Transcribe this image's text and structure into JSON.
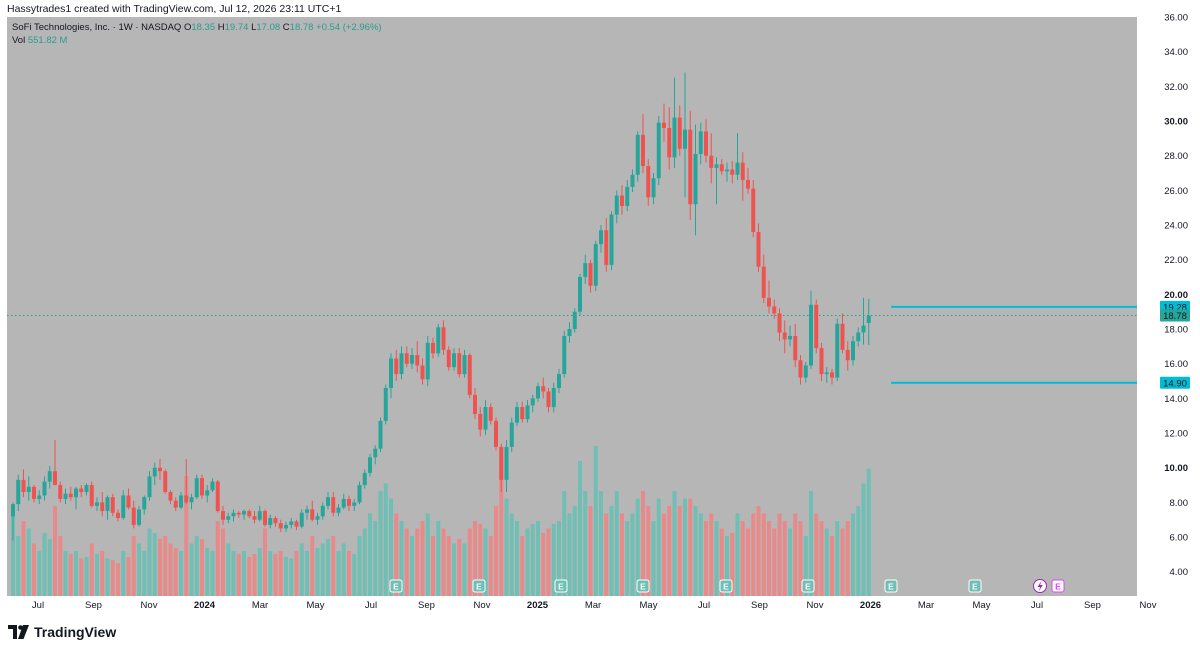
{
  "header": {
    "text": "Hassytrades1 created with TradingView.com, Jul 12, 2026 23:11 UTC+1"
  },
  "legend": {
    "symbol": "SoFi Technologies, Inc. · 1W · NASDAQ",
    "o_label": "O",
    "o_value": "18.35",
    "h_label": "H",
    "h_value": "19.74",
    "l_label": "L",
    "l_value": "17.08",
    "c_label": "C",
    "c_value": "18.78",
    "change": "+0.54 (+2.96%)",
    "vol_label": "Vol",
    "vol_value": "551.82 M"
  },
  "footer": {
    "brand": "TradingView"
  },
  "colors": {
    "background": "#b6b6b6",
    "up": "#26a69a",
    "down": "#ef5350",
    "up_volume": "#6fbfb4",
    "down_volume": "#e8898a",
    "level_line": "#00bcd4",
    "price_text": "#131722"
  },
  "icons": {
    "earnings": "earnings-e-icon",
    "future_earnings": "earnings-e-outline-icon",
    "dividend": "lightning-icon",
    "logo": "tradingview-logo-icon"
  },
  "chart_data": {
    "type": "candlestick",
    "interval": "1W",
    "ylim": [
      2.6,
      36
    ],
    "y_ticks": [
      "4.00",
      "6.00",
      "8.00",
      "10.00",
      "12.00",
      "14.00",
      "16.00",
      "18.00",
      "20.00",
      "22.00",
      "24.00",
      "26.00",
      "28.00",
      "30.00",
      "32.00",
      "34.00",
      "36.00"
    ],
    "y_bold_ticks": [
      "10.00",
      "20.00",
      "30.00"
    ],
    "x_ticks": [
      "Jul",
      "Sep",
      "Nov",
      "2024",
      "Mar",
      "May",
      "Jul",
      "Sep",
      "Nov",
      "2025",
      "Mar",
      "May",
      "Jul",
      "Sep",
      "Nov",
      "2026",
      "Mar",
      "May",
      "Jul",
      "Sep",
      "Nov"
    ],
    "x_bold_ticks": [
      "2024",
      "2025",
      "2026"
    ],
    "price_labels": [
      {
        "value": 19.28,
        "text": "19.28"
      },
      {
        "value": 18.78,
        "text": "18.78"
      },
      {
        "value": 14.9,
        "text": "14.90"
      }
    ],
    "horizontal_levels": [
      19.28,
      14.9
    ],
    "last_close": 18.78,
    "earnings_markers": 8,
    "candles": [
      [
        7.2,
        8.0,
        5.8,
        7.9,
        0.55
      ],
      [
        7.9,
        9.6,
        7.5,
        9.3,
        0.4
      ],
      [
        9.3,
        9.9,
        8.3,
        8.6,
        0.5
      ],
      [
        8.6,
        9.5,
        8.1,
        8.9,
        0.45
      ],
      [
        8.9,
        9.0,
        8.0,
        8.2,
        0.35
      ],
      [
        8.2,
        8.7,
        7.9,
        8.4,
        0.3
      ],
      [
        8.4,
        9.5,
        8.1,
        9.2,
        0.42
      ],
      [
        9.2,
        10.1,
        8.8,
        9.8,
        0.38
      ],
      [
        9.8,
        11.6,
        9.0,
        9.0,
        0.6
      ],
      [
        9.0,
        9.2,
        8.0,
        8.2,
        0.4
      ],
      [
        8.2,
        8.8,
        7.9,
        8.5,
        0.3
      ],
      [
        8.5,
        8.9,
        8.1,
        8.3,
        0.28
      ],
      [
        8.3,
        8.9,
        7.6,
        8.8,
        0.3
      ],
      [
        8.8,
        9.0,
        8.3,
        8.6,
        0.25
      ],
      [
        8.6,
        9.1,
        8.4,
        9.0,
        0.26
      ],
      [
        9.0,
        9.2,
        7.7,
        7.8,
        0.35
      ],
      [
        7.8,
        8.3,
        7.5,
        8.0,
        0.28
      ],
      [
        8.0,
        8.6,
        7.2,
        7.5,
        0.3
      ],
      [
        7.5,
        8.4,
        7.0,
        8.3,
        0.25
      ],
      [
        8.3,
        8.5,
        7.2,
        7.4,
        0.24
      ],
      [
        7.4,
        7.6,
        6.9,
        7.1,
        0.22
      ],
      [
        7.1,
        8.7,
        7.0,
        8.4,
        0.3
      ],
      [
        8.4,
        8.8,
        7.6,
        7.7,
        0.26
      ],
      [
        7.7,
        8.1,
        6.5,
        6.7,
        0.4
      ],
      [
        6.7,
        7.8,
        6.6,
        7.6,
        0.35
      ],
      [
        7.6,
        8.4,
        7.3,
        8.3,
        0.3
      ],
      [
        8.3,
        9.8,
        8.1,
        9.5,
        0.45
      ],
      [
        9.5,
        10.3,
        9.0,
        10.0,
        0.42
      ],
      [
        10.0,
        10.5,
        9.3,
        9.8,
        0.38
      ],
      [
        9.8,
        9.9,
        8.5,
        8.6,
        0.4
      ],
      [
        8.6,
        8.7,
        7.9,
        8.1,
        0.35
      ],
      [
        8.1,
        8.3,
        7.5,
        7.7,
        0.32
      ],
      [
        7.7,
        8.6,
        7.6,
        8.4,
        0.3
      ],
      [
        8.4,
        10.5,
        7.9,
        8.0,
        0.8
      ],
      [
        8.0,
        8.5,
        7.6,
        8.3,
        0.35
      ],
      [
        8.3,
        9.6,
        8.2,
        9.4,
        0.4
      ],
      [
        9.4,
        9.6,
        8.2,
        8.4,
        0.38
      ],
      [
        8.4,
        9.0,
        8.0,
        8.7,
        0.32
      ],
      [
        8.7,
        9.4,
        8.6,
        9.2,
        0.3
      ],
      [
        9.2,
        9.3,
        7.4,
        7.5,
        0.5
      ],
      [
        7.5,
        7.8,
        6.7,
        7.0,
        0.45
      ],
      [
        7.0,
        7.4,
        6.8,
        7.2,
        0.35
      ],
      [
        7.2,
        7.6,
        6.9,
        7.4,
        0.3
      ],
      [
        7.4,
        7.5,
        7.1,
        7.3,
        0.28
      ],
      [
        7.3,
        7.6,
        7.0,
        7.5,
        0.3
      ],
      [
        7.5,
        7.6,
        7.1,
        7.2,
        0.26
      ],
      [
        7.2,
        7.5,
        6.8,
        7.0,
        0.28
      ],
      [
        7.0,
        7.8,
        6.9,
        7.5,
        0.32
      ],
      [
        7.5,
        7.6,
        6.6,
        6.7,
        0.45
      ],
      [
        6.7,
        7.3,
        6.5,
        7.1,
        0.3
      ],
      [
        7.1,
        7.2,
        6.6,
        6.8,
        0.28
      ],
      [
        6.8,
        7.0,
        6.3,
        6.5,
        0.3
      ],
      [
        6.5,
        6.9,
        6.3,
        6.7,
        0.26
      ],
      [
        6.7,
        7.1,
        6.5,
        6.9,
        0.25
      ],
      [
        6.9,
        7.0,
        6.4,
        6.6,
        0.3
      ],
      [
        6.6,
        7.6,
        6.5,
        7.4,
        0.35
      ],
      [
        7.4,
        7.8,
        7.0,
        7.6,
        0.3
      ],
      [
        7.6,
        8.1,
        6.9,
        7.0,
        0.4
      ],
      [
        7.0,
        7.4,
        6.7,
        7.2,
        0.32
      ],
      [
        7.2,
        8.0,
        7.0,
        7.8,
        0.35
      ],
      [
        7.8,
        8.6,
        7.6,
        8.3,
        0.38
      ],
      [
        8.3,
        8.6,
        7.2,
        7.4,
        0.4
      ],
      [
        7.4,
        7.9,
        7.2,
        7.7,
        0.3
      ],
      [
        7.7,
        8.5,
        7.6,
        8.2,
        0.35
      ],
      [
        8.2,
        8.4,
        7.5,
        7.8,
        0.3
      ],
      [
        7.8,
        8.2,
        7.5,
        8.0,
        0.28
      ],
      [
        8.0,
        9.2,
        7.9,
        9.0,
        0.4
      ],
      [
        9.0,
        9.9,
        8.8,
        9.7,
        0.45
      ],
      [
        9.7,
        10.8,
        9.5,
        10.6,
        0.55
      ],
      [
        10.6,
        11.3,
        10.2,
        11.1,
        0.5
      ],
      [
        11.1,
        12.9,
        10.9,
        12.7,
        0.7
      ],
      [
        12.7,
        14.8,
        12.5,
        14.6,
        0.75
      ],
      [
        14.6,
        16.6,
        14.0,
        16.3,
        0.65
      ],
      [
        16.3,
        16.8,
        15.0,
        15.4,
        0.55
      ],
      [
        15.4,
        17.0,
        15.1,
        16.6,
        0.5
      ],
      [
        16.6,
        17.0,
        15.8,
        16.0,
        0.45
      ],
      [
        16.0,
        16.9,
        15.7,
        16.5,
        0.4
      ],
      [
        16.5,
        17.3,
        15.5,
        15.9,
        0.45
      ],
      [
        15.9,
        16.3,
        14.8,
        15.1,
        0.5
      ],
      [
        15.1,
        17.6,
        14.7,
        17.2,
        0.55
      ],
      [
        17.2,
        17.5,
        16.3,
        16.6,
        0.4
      ],
      [
        16.6,
        18.3,
        16.4,
        18.1,
        0.5
      ],
      [
        18.1,
        18.5,
        16.5,
        16.8,
        0.45
      ],
      [
        16.8,
        17.0,
        15.6,
        15.8,
        0.4
      ],
      [
        15.8,
        16.9,
        15.6,
        16.6,
        0.35
      ],
      [
        16.6,
        16.9,
        15.2,
        15.4,
        0.38
      ],
      [
        15.4,
        16.8,
        15.2,
        16.5,
        0.35
      ],
      [
        16.5,
        16.6,
        14.0,
        14.2,
        0.45
      ],
      [
        14.2,
        14.6,
        12.8,
        13.1,
        0.5
      ],
      [
        13.1,
        13.5,
        11.8,
        12.2,
        0.48
      ],
      [
        12.2,
        13.9,
        11.9,
        13.5,
        0.45
      ],
      [
        13.5,
        13.7,
        12.5,
        12.7,
        0.4
      ],
      [
        12.7,
        12.9,
        11.0,
        11.2,
        0.6
      ],
      [
        11.2,
        11.4,
        8.6,
        9.3,
        0.95
      ],
      [
        9.3,
        11.6,
        8.6,
        11.2,
        0.65
      ],
      [
        11.2,
        12.9,
        10.9,
        12.6,
        0.55
      ],
      [
        12.6,
        13.8,
        12.4,
        13.5,
        0.5
      ],
      [
        13.5,
        13.8,
        12.6,
        12.8,
        0.4
      ],
      [
        12.8,
        13.9,
        12.6,
        13.6,
        0.45
      ],
      [
        13.6,
        14.2,
        13.2,
        14.0,
        0.48
      ],
      [
        14.0,
        14.9,
        13.8,
        14.7,
        0.5
      ],
      [
        14.7,
        15.2,
        14.0,
        14.4,
        0.42
      ],
      [
        14.4,
        14.6,
        13.2,
        13.5,
        0.45
      ],
      [
        13.5,
        14.9,
        13.2,
        14.6,
        0.48
      ],
      [
        14.6,
        15.7,
        14.3,
        15.4,
        0.5
      ],
      [
        15.4,
        17.9,
        15.2,
        17.6,
        0.7
      ],
      [
        17.6,
        18.4,
        17.2,
        18.0,
        0.55
      ],
      [
        18.0,
        19.2,
        17.8,
        19.0,
        0.6
      ],
      [
        19.0,
        21.2,
        18.8,
        21.0,
        0.9
      ],
      [
        21.0,
        22.3,
        20.6,
        21.8,
        0.7
      ],
      [
        21.8,
        22.0,
        20.1,
        20.5,
        0.6
      ],
      [
        20.5,
        23.1,
        20.2,
        22.9,
        1.0
      ],
      [
        22.9,
        24.0,
        22.4,
        23.7,
        0.7
      ],
      [
        23.7,
        24.4,
        21.3,
        21.7,
        0.55
      ],
      [
        21.7,
        24.8,
        21.4,
        24.6,
        0.6
      ],
      [
        24.6,
        26.0,
        24.1,
        25.7,
        0.7
      ],
      [
        25.7,
        26.3,
        24.6,
        25.1,
        0.55
      ],
      [
        25.1,
        26.6,
        24.8,
        26.2,
        0.5
      ],
      [
        26.2,
        27.2,
        25.9,
        26.9,
        0.55
      ],
      [
        26.9,
        29.4,
        26.5,
        29.2,
        0.65
      ],
      [
        29.2,
        30.4,
        27.0,
        27.4,
        0.7
      ],
      [
        27.4,
        27.8,
        25.1,
        25.6,
        0.6
      ],
      [
        25.6,
        27.0,
        25.2,
        26.7,
        0.5
      ],
      [
        26.7,
        30.3,
        26.3,
        29.9,
        0.65
      ],
      [
        29.9,
        31.0,
        28.8,
        29.6,
        0.55
      ],
      [
        29.6,
        30.8,
        27.2,
        27.9,
        0.6
      ],
      [
        27.9,
        32.5,
        27.3,
        30.2,
        0.7
      ],
      [
        30.2,
        30.9,
        28.0,
        28.4,
        0.6
      ],
      [
        28.4,
        32.8,
        25.6,
        29.5,
        0.65
      ],
      [
        29.5,
        30.6,
        24.3,
        25.2,
        0.65
      ],
      [
        25.2,
        29.8,
        23.4,
        28.1,
        0.6
      ],
      [
        28.1,
        29.9,
        27.5,
        29.4,
        0.55
      ],
      [
        29.4,
        30.1,
        27.6,
        28.0,
        0.5
      ],
      [
        28.0,
        29.3,
        26.4,
        27.3,
        0.55
      ],
      [
        27.3,
        27.9,
        25.2,
        27.5,
        0.5
      ],
      [
        27.5,
        27.8,
        26.9,
        27.1,
        0.45
      ],
      [
        27.1,
        27.6,
        26.5,
        27.2,
        0.4
      ],
      [
        27.2,
        27.7,
        26.4,
        26.9,
        0.42
      ],
      [
        26.9,
        29.3,
        26.6,
        27.6,
        0.55
      ],
      [
        27.6,
        28.2,
        25.4,
        26.6,
        0.5
      ],
      [
        26.6,
        27.3,
        25.8,
        26.1,
        0.45
      ],
      [
        26.1,
        26.6,
        23.3,
        23.6,
        0.55
      ],
      [
        23.6,
        24.1,
        21.3,
        21.6,
        0.6
      ],
      [
        21.6,
        22.3,
        19.5,
        19.8,
        0.55
      ],
      [
        19.8,
        20.8,
        18.9,
        19.3,
        0.5
      ],
      [
        19.3,
        19.7,
        18.6,
        18.9,
        0.45
      ],
      [
        18.9,
        19.2,
        17.3,
        17.8,
        0.55
      ],
      [
        17.8,
        18.5,
        16.6,
        17.4,
        0.5
      ],
      [
        17.4,
        18.2,
        17.0,
        17.6,
        0.45
      ],
      [
        17.6,
        18.3,
        15.8,
        16.2,
        0.55
      ],
      [
        16.2,
        16.5,
        14.8,
        15.2,
        0.5
      ],
      [
        15.2,
        16.1,
        14.9,
        15.9,
        0.4
      ],
      [
        15.9,
        20.2,
        15.7,
        19.4,
        0.7
      ],
      [
        19.4,
        19.7,
        16.6,
        16.9,
        0.55
      ],
      [
        16.9,
        17.2,
        15.0,
        15.4,
        0.5
      ],
      [
        15.4,
        15.8,
        14.9,
        15.5,
        0.45
      ],
      [
        15.5,
        15.7,
        14.8,
        15.2,
        0.4
      ],
      [
        15.2,
        18.6,
        15.0,
        18.3,
        0.5
      ],
      [
        18.3,
        18.9,
        16.6,
        16.8,
        0.45
      ],
      [
        16.8,
        17.3,
        15.6,
        16.2,
        0.5
      ],
      [
        16.2,
        17.6,
        15.9,
        17.3,
        0.55
      ],
      [
        17.3,
        18.1,
        17.0,
        17.8,
        0.6
      ],
      [
        17.8,
        19.8,
        17.1,
        18.2,
        0.75
      ],
      [
        18.35,
        19.74,
        17.08,
        18.78,
        0.85
      ]
    ]
  }
}
